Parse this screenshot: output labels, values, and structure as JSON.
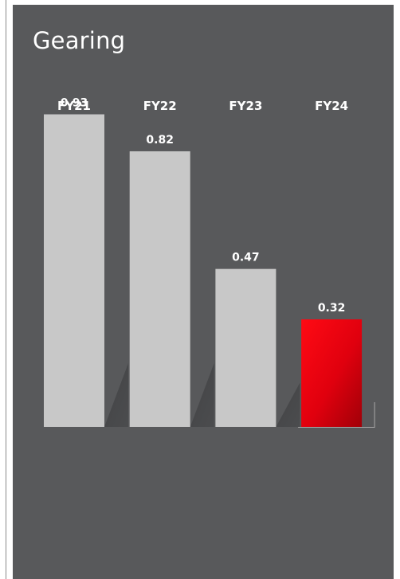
{
  "title": "Gearing",
  "chart_data": {
    "type": "bar",
    "title": "Gearing",
    "categories": [
      "FY21",
      "FY22",
      "FY23",
      "FY24"
    ],
    "values": [
      0.93,
      0.82,
      0.47,
      0.32
    ],
    "value_labels": [
      "0.93",
      "0.82",
      "0.47",
      "0.32"
    ],
    "ylim": [
      0,
      1
    ],
    "grid": false,
    "legend": "none",
    "colors": {
      "background": "#58595b",
      "bar": "#c8c8c8",
      "highlight_bar_top": "#ff0a14",
      "highlight_bar_bottom": "#a00008",
      "text": "#ffffff"
    },
    "highlight_index": 3
  }
}
